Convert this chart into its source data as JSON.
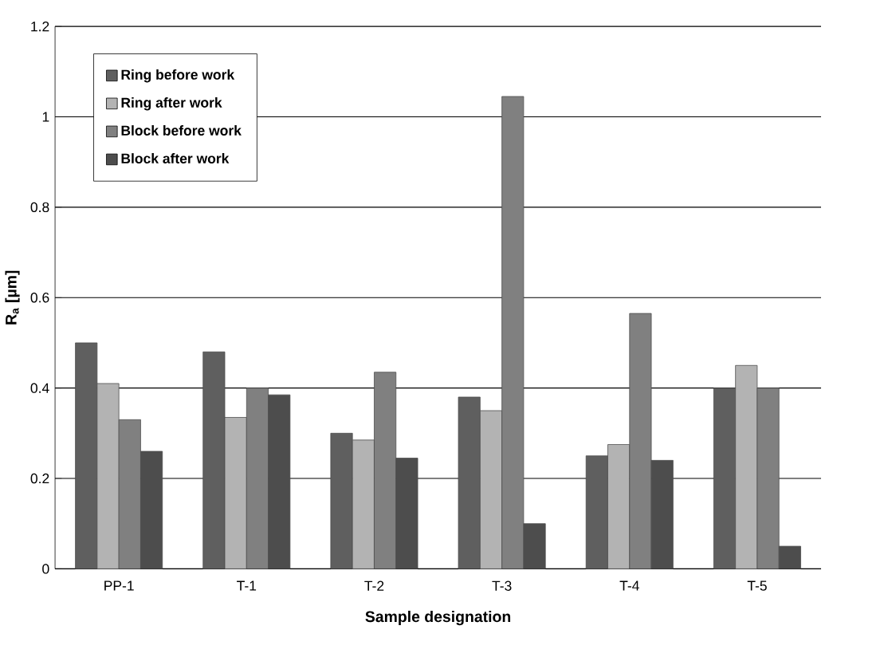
{
  "chart_data": {
    "type": "bar",
    "xlabel": "Sample designation",
    "ylabel": "R$_{a}$ [µm]",
    "categories": [
      "PP-1",
      "T-1",
      "T-2",
      "T-3",
      "T-4",
      "T-5"
    ],
    "series": [
      {
        "name": "Ring before work",
        "color": "#5f5f5f",
        "values": [
          0.5,
          0.48,
          0.3,
          0.38,
          0.25,
          0.4
        ]
      },
      {
        "name": "Ring after work",
        "color": "#b3b3b3",
        "values": [
          0.41,
          0.335,
          0.285,
          0.35,
          0.275,
          0.45
        ]
      },
      {
        "name": "Block before work",
        "color": "#808080",
        "values": [
          0.33,
          0.4,
          0.435,
          1.045,
          0.565,
          0.4
        ]
      },
      {
        "name": "Block after work",
        "color": "#4d4d4d",
        "values": [
          0.26,
          0.385,
          0.245,
          0.1,
          0.24,
          0.05
        ]
      }
    ],
    "ylim": [
      0,
      1.2
    ],
    "yticks": [
      0,
      0.2,
      0.4,
      0.6,
      0.8,
      1,
      1.2
    ],
    "grid": "y",
    "legend": "top left"
  }
}
